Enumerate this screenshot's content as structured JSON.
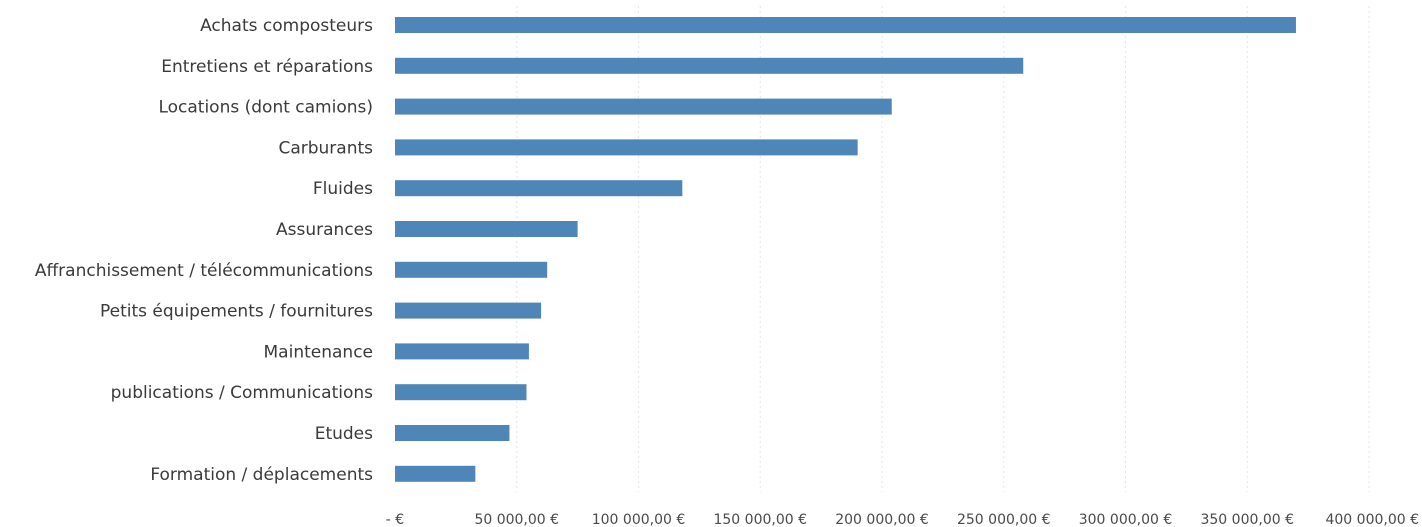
{
  "chart_data": {
    "type": "bar",
    "orientation": "horizontal",
    "categories": [
      "Achats composteurs",
      "Entretiens et réparations",
      "Locations (dont camions)",
      "Carburants",
      "Fluides",
      "Assurances",
      "Affranchissement / télécommunications",
      "Petits équipements / fournitures",
      "Maintenance",
      "publications / Communications",
      "Etudes",
      "Formation / déplacements"
    ],
    "values": [
      370000,
      258000,
      204000,
      190000,
      118000,
      75000,
      62500,
      60000,
      55000,
      54000,
      47000,
      33000
    ],
    "xlim": [
      0,
      400000
    ],
    "x_ticks": [
      0,
      50000,
      100000,
      150000,
      200000,
      250000,
      300000,
      350000,
      400000
    ],
    "x_tick_labels": [
      "-  €",
      "50 000,00 €",
      "100 000,00 €",
      "150 000,00 €",
      "200 000,00 €",
      "250 000,00 €",
      "300 000,00 €",
      "350 000,00 €",
      "400 000,00 €"
    ],
    "title": "",
    "xlabel": "",
    "ylabel": "",
    "grid": true,
    "legend": "none",
    "bar_color": "#4f86b8"
  }
}
